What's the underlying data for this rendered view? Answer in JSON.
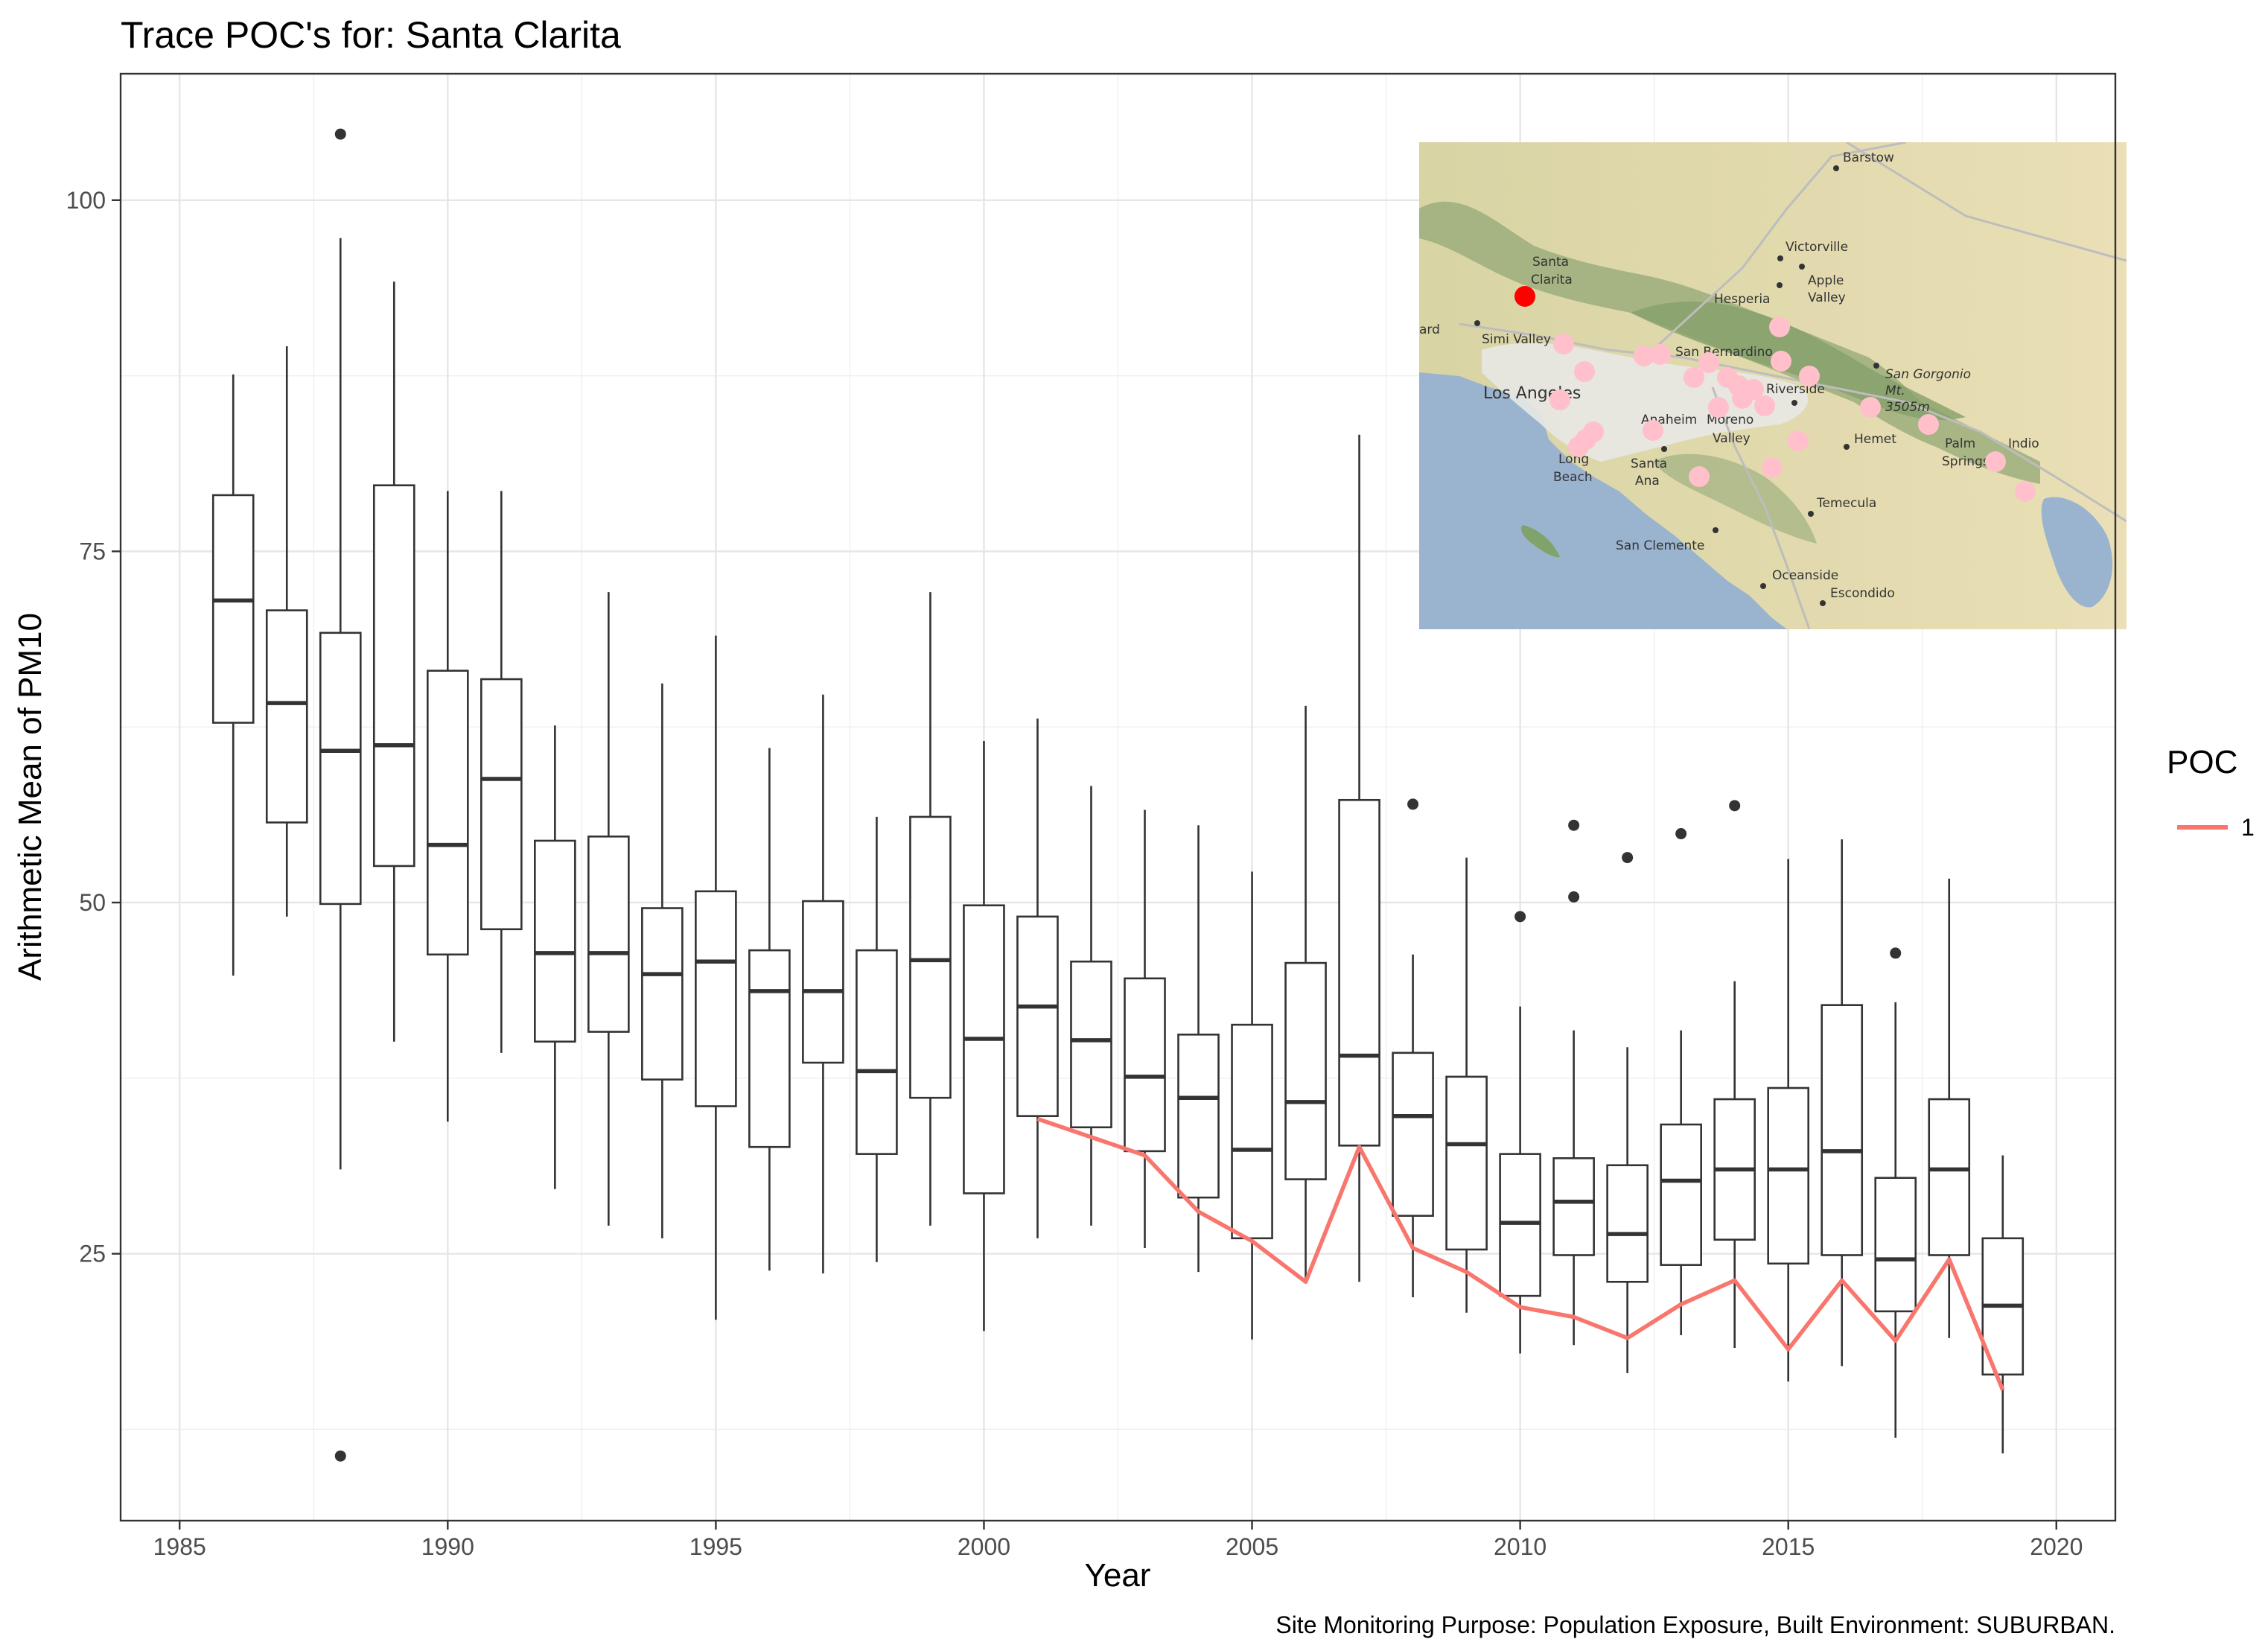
{
  "chart_data": {
    "type": "box",
    "title": "Trace POC's for: Santa Clarita",
    "xlabel": "Year",
    "ylabel": "Arithmetic Mean of PM10",
    "caption": "Site Monitoring Purpose: Population Exposure, Built Environment: SUBURBAN.",
    "xlim": [
      1983.9,
      2021.1
    ],
    "ylim": [
      6,
      109
    ],
    "x_ticks": [
      1985,
      1990,
      1995,
      2000,
      2005,
      2010,
      2015,
      2020
    ],
    "x_tick_labels": [
      "1985",
      "1990",
      "1995",
      "2000",
      "2005",
      "2010",
      "2015",
      "2020"
    ],
    "y_ticks": [
      25,
      50,
      75,
      100
    ],
    "y_tick_labels": [
      "25",
      "50",
      "75",
      "100"
    ],
    "grid": true,
    "legend": {
      "title": "POC",
      "position": "right",
      "entries": [
        {
          "label": "1",
          "color": "#F8766D"
        }
      ]
    },
    "boxes": [
      {
        "year": 1986,
        "whisker_low": 44.8,
        "q1": 62.8,
        "median": 71.5,
        "q3": 79.0,
        "whisker_high": 87.6,
        "outliers": []
      },
      {
        "year": 1987,
        "whisker_low": 49.0,
        "q1": 55.7,
        "median": 64.2,
        "q3": 70.8,
        "whisker_high": 89.6,
        "outliers": []
      },
      {
        "year": 1988,
        "whisker_low": 31.0,
        "q1": 49.9,
        "median": 60.8,
        "q3": 69.2,
        "whisker_high": 97.3,
        "outliers": [
          10.6,
          104.7
        ]
      },
      {
        "year": 1989,
        "whisker_low": 40.1,
        "q1": 52.6,
        "median": 61.2,
        "q3": 79.7,
        "whisker_high": 94.2,
        "outliers": []
      },
      {
        "year": 1990,
        "whisker_low": 34.4,
        "q1": 46.3,
        "median": 54.1,
        "q3": 66.5,
        "whisker_high": 79.3,
        "outliers": []
      },
      {
        "year": 1991,
        "whisker_low": 39.3,
        "q1": 48.1,
        "median": 58.8,
        "q3": 65.9,
        "whisker_high": 79.3,
        "outliers": []
      },
      {
        "year": 1992,
        "whisker_low": 29.6,
        "q1": 40.1,
        "median": 46.4,
        "q3": 54.4,
        "whisker_high": 62.6,
        "outliers": []
      },
      {
        "year": 1993,
        "whisker_low": 27.0,
        "q1": 40.8,
        "median": 46.4,
        "q3": 54.7,
        "whisker_high": 72.1,
        "outliers": []
      },
      {
        "year": 1994,
        "whisker_low": 26.1,
        "q1": 37.4,
        "median": 44.9,
        "q3": 49.6,
        "whisker_high": 65.6,
        "outliers": []
      },
      {
        "year": 1995,
        "whisker_low": 20.3,
        "q1": 35.5,
        "median": 45.8,
        "q3": 50.8,
        "whisker_high": 69.0,
        "outliers": []
      },
      {
        "year": 1996,
        "whisker_low": 23.8,
        "q1": 32.6,
        "median": 43.7,
        "q3": 46.6,
        "whisker_high": 61.0,
        "outliers": []
      },
      {
        "year": 1997,
        "whisker_low": 23.6,
        "q1": 38.6,
        "median": 43.7,
        "q3": 50.1,
        "whisker_high": 64.8,
        "outliers": []
      },
      {
        "year": 1998,
        "whisker_low": 24.4,
        "q1": 32.1,
        "median": 38.0,
        "q3": 46.6,
        "whisker_high": 56.1,
        "outliers": []
      },
      {
        "year": 1999,
        "whisker_low": 27.0,
        "q1": 36.1,
        "median": 45.9,
        "q3": 56.1,
        "whisker_high": 72.1,
        "outliers": []
      },
      {
        "year": 2000,
        "whisker_low": 19.5,
        "q1": 29.3,
        "median": 40.3,
        "q3": 49.8,
        "whisker_high": 61.5,
        "outliers": []
      },
      {
        "year": 2001,
        "whisker_low": 26.1,
        "q1": 34.8,
        "median": 42.6,
        "q3": 49.0,
        "whisker_high": 63.1,
        "outliers": []
      },
      {
        "year": 2002,
        "whisker_low": 27.0,
        "q1": 34.0,
        "median": 40.2,
        "q3": 45.8,
        "whisker_high": 58.3,
        "outliers": []
      },
      {
        "year": 2003,
        "whisker_low": 25.4,
        "q1": 32.3,
        "median": 37.6,
        "q3": 44.6,
        "whisker_high": 56.6,
        "outliers": []
      },
      {
        "year": 2004,
        "whisker_low": 23.7,
        "q1": 29.0,
        "median": 36.1,
        "q3": 40.6,
        "whisker_high": 55.5,
        "outliers": []
      },
      {
        "year": 2005,
        "whisker_low": 18.9,
        "q1": 26.1,
        "median": 32.4,
        "q3": 41.3,
        "whisker_high": 52.2,
        "outliers": []
      },
      {
        "year": 2006,
        "whisker_low": 22.9,
        "q1": 30.3,
        "median": 35.8,
        "q3": 45.7,
        "whisker_high": 64.0,
        "outliers": []
      },
      {
        "year": 2007,
        "whisker_low": 23.0,
        "q1": 32.7,
        "median": 39.1,
        "q3": 57.3,
        "whisker_high": 83.3,
        "outliers": []
      },
      {
        "year": 2008,
        "whisker_low": 21.9,
        "q1": 27.7,
        "median": 34.8,
        "q3": 39.3,
        "whisker_high": 46.3,
        "outliers": [
          57.0
        ]
      },
      {
        "year": 2009,
        "whisker_low": 20.8,
        "q1": 25.3,
        "median": 32.8,
        "q3": 37.6,
        "whisker_high": 53.2,
        "outliers": []
      },
      {
        "year": 2010,
        "whisker_low": 17.9,
        "q1": 22.0,
        "median": 27.2,
        "q3": 32.1,
        "whisker_high": 42.6,
        "outliers": [
          49.0
        ]
      },
      {
        "year": 2011,
        "whisker_low": 18.5,
        "q1": 24.9,
        "median": 28.7,
        "q3": 31.8,
        "whisker_high": 40.9,
        "outliers": [
          50.4,
          55.5
        ]
      },
      {
        "year": 2012,
        "whisker_low": 16.5,
        "q1": 23.0,
        "median": 26.4,
        "q3": 31.3,
        "whisker_high": 39.7,
        "outliers": [
          53.2
        ]
      },
      {
        "year": 2013,
        "whisker_low": 19.2,
        "q1": 24.2,
        "median": 30.2,
        "q3": 34.2,
        "whisker_high": 40.9,
        "outliers": [
          54.9
        ]
      },
      {
        "year": 2014,
        "whisker_low": 18.3,
        "q1": 26.0,
        "median": 31.0,
        "q3": 36.0,
        "whisker_high": 44.4,
        "outliers": [
          56.9
        ]
      },
      {
        "year": 2015,
        "whisker_low": 15.9,
        "q1": 24.3,
        "median": 31.0,
        "q3": 36.8,
        "whisker_high": 53.1,
        "outliers": []
      },
      {
        "year": 2016,
        "whisker_low": 17.0,
        "q1": 24.9,
        "median": 32.3,
        "q3": 42.7,
        "whisker_high": 54.5,
        "outliers": []
      },
      {
        "year": 2017,
        "whisker_low": 11.9,
        "q1": 20.9,
        "median": 24.6,
        "q3": 30.4,
        "whisker_high": 42.9,
        "outliers": [
          46.4
        ]
      },
      {
        "year": 2018,
        "whisker_low": 19.0,
        "q1": 24.9,
        "median": 31.0,
        "q3": 36.0,
        "whisker_high": 51.7,
        "outliers": []
      },
      {
        "year": 2019,
        "whisker_low": 10.8,
        "q1": 16.4,
        "median": 21.3,
        "q3": 26.1,
        "whisker_high": 32.0,
        "outliers": []
      }
    ],
    "series": [
      {
        "name": "1",
        "color": "#F8766D",
        "x": [
          2001,
          2002,
          2003,
          2004,
          2005,
          2006,
          2007,
          2008,
          2009,
          2010,
          2011,
          2012,
          2013,
          2014,
          2015,
          2016,
          2017,
          2018,
          2019
        ],
        "y": [
          34.6,
          33.3,
          32.0,
          28.0,
          25.9,
          23.0,
          32.6,
          25.4,
          23.7,
          21.2,
          20.5,
          19.0,
          21.4,
          23.1,
          18.2,
          23.1,
          18.8,
          24.6,
          15.3
        ]
      }
    ]
  },
  "inset_map": {
    "labels": [
      "Barstow",
      "Victorville",
      "Apple",
      "Valley",
      "Santa",
      "Clarita",
      "Hesperia",
      "ard",
      "Simi Valley",
      "San Bernardino",
      "Los Angeles",
      "San Gorgonio",
      "Mt.",
      "3505m",
      "Riverside",
      "Anaheim",
      "Moreno",
      "Valley",
      "Hemet",
      "Palm",
      "Springs",
      "Indio",
      "Long",
      "Beach",
      "Santa",
      "Ana",
      "Temecula",
      "San Clemente",
      "Oceanside",
      "Escondido"
    ],
    "highlight_color": "#FF0000",
    "site_color": "#FFC0CB",
    "ocean_color": "#9AB3CF",
    "land_color": "#E3DCB0"
  }
}
